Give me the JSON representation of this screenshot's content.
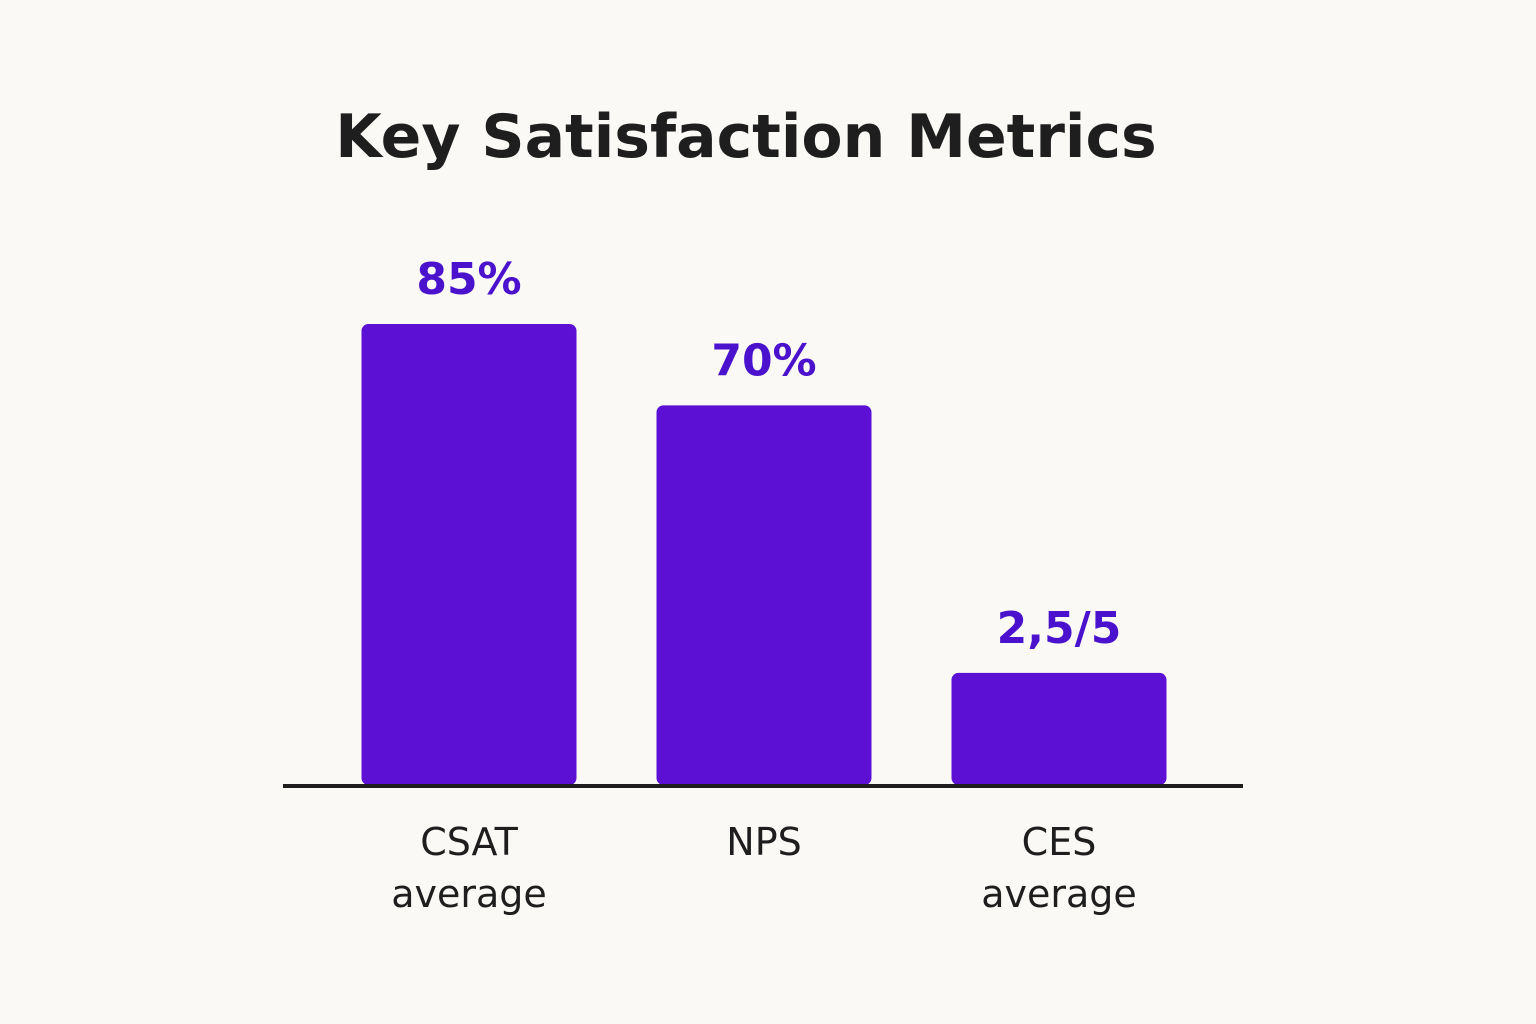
{
  "chart_data": {
    "type": "bar",
    "title": "Key Satisfaction Metrics",
    "categories": [
      [
        "CSAT",
        "average"
      ],
      [
        "NPS"
      ],
      [
        "CES",
        "average"
      ]
    ],
    "values": [
      85,
      70,
      2.5
    ],
    "value_labels": [
      "85%",
      "70%",
      "2,5/5"
    ],
    "xlabel": "",
    "ylabel": "",
    "grid": false,
    "legend": "none",
    "bar_color": "#5b10d4",
    "label_color": "#4a12cc",
    "axis_color": "#1e1e1e"
  }
}
